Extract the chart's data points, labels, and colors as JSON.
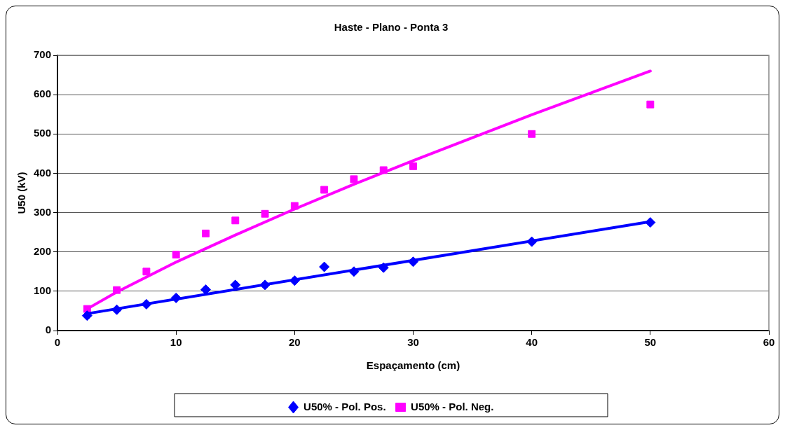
{
  "chart_data": {
    "type": "scatter",
    "title": "Haste - Plano - Ponta 3",
    "xlabel": "Espaçamento (cm)",
    "ylabel": "U50 (kV)",
    "x": [
      2.5,
      5,
      7.5,
      10,
      12.5,
      15,
      17.5,
      20,
      22.5,
      25,
      27.5,
      30,
      40,
      50
    ],
    "series": [
      {
        "name": "U50% - Pol. Pos.",
        "color": "#0000ff",
        "marker": "diamond",
        "values": [
          38,
          53,
          67,
          83,
          104,
          116,
          116,
          127,
          162,
          150,
          160,
          175,
          226,
          275
        ]
      },
      {
        "name": "U50% - Pol. Neg.",
        "color": "#ff00ff",
        "marker": "square",
        "values": [
          55,
          103,
          150,
          193,
          247,
          280,
          297,
          317,
          358,
          385,
          408,
          418,
          500,
          575
        ]
      },
      {
        "type": "line",
        "color": "#0000ff",
        "marker": "none",
        "x": [
          2.5,
          50
        ],
        "values": [
          43,
          277
        ]
      },
      {
        "type": "line",
        "color": "#ff00ff",
        "marker": "none",
        "x": [
          2.5,
          5,
          10,
          15,
          20,
          25,
          30,
          40,
          50
        ],
        "values": [
          55,
          98,
          174,
          243,
          309,
          372,
          432,
          549,
          660
        ]
      }
    ],
    "xlim": [
      0,
      60
    ],
    "xticks": [
      0,
      10,
      20,
      30,
      40,
      50,
      60
    ],
    "ylim": [
      0,
      700
    ],
    "yticks": [
      0,
      100,
      200,
      300,
      400,
      500,
      600,
      700
    ],
    "grid": "y",
    "legend": "bottom"
  }
}
